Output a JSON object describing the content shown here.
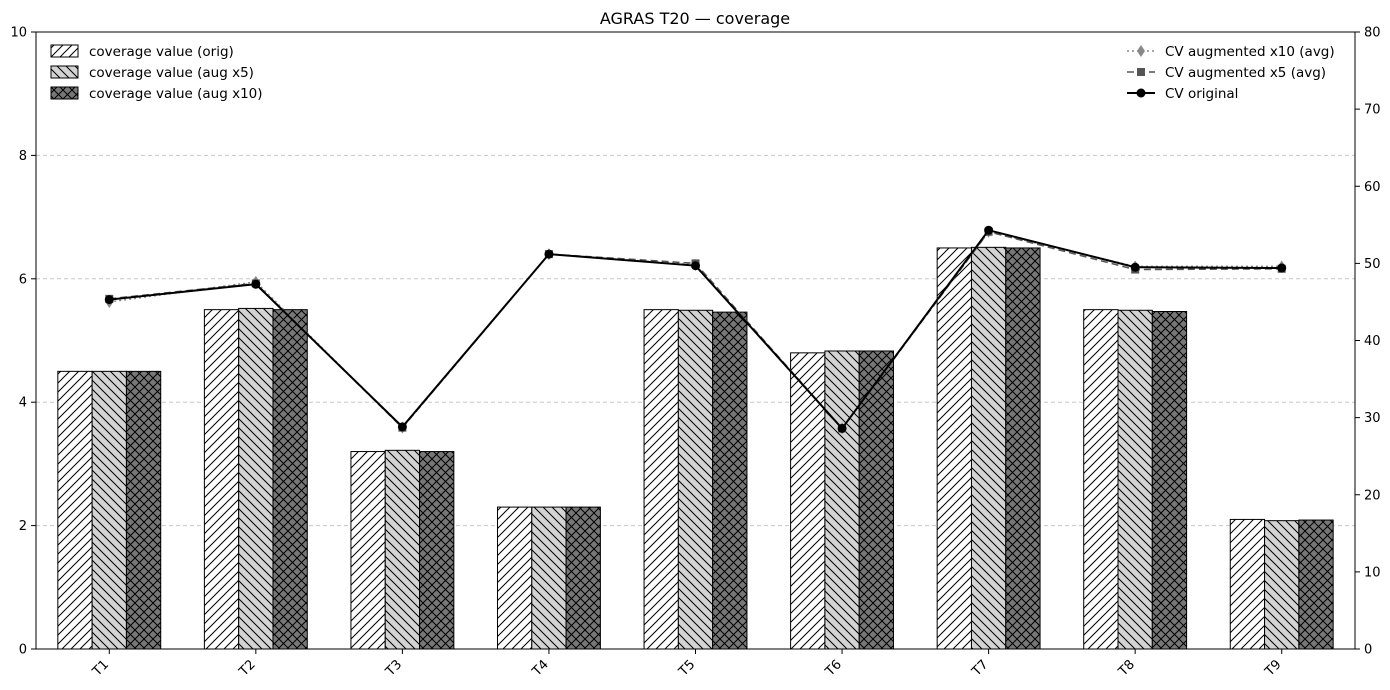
{
  "chart_data": {
    "type": "bar",
    "title": "AGRAS T20 — coverage",
    "xlabel": "",
    "ylabel": "",
    "y2label": "",
    "categories": [
      "T1",
      "T2",
      "T3",
      "T4",
      "T5",
      "T6",
      "T7",
      "T8",
      "T9"
    ],
    "ylim": [
      0,
      10
    ],
    "yticks": [
      0,
      2,
      4,
      6,
      8,
      10
    ],
    "y2lim": [
      0,
      80
    ],
    "y2ticks": [
      0,
      10,
      20,
      30,
      40,
      50,
      60,
      70,
      80
    ],
    "grid": "y-dashed",
    "series": [
      {
        "name": "coverage value (orig)",
        "kind": "bar",
        "fill": "#ffffff",
        "hatch": "forward-diagonal",
        "values": [
          4.5,
          5.5,
          3.2,
          2.3,
          5.5,
          4.8,
          6.5,
          5.5,
          2.1
        ]
      },
      {
        "name": "coverage value (aug x5)",
        "kind": "bar",
        "fill": "#d3d3d3",
        "hatch": "back-diagonal",
        "values": [
          4.5,
          5.52,
          3.22,
          2.3,
          5.49,
          4.83,
          6.51,
          5.49,
          2.08
        ]
      },
      {
        "name": "coverage value (aug x10)",
        "kind": "bar",
        "fill": "#777777",
        "hatch": "cross",
        "values": [
          4.5,
          5.5,
          3.2,
          2.3,
          5.46,
          4.83,
          6.5,
          5.47,
          2.09
        ]
      }
    ],
    "line_series": [
      {
        "name": "CV augmented x10 (avg)",
        "axis": "right",
        "color": "#888888",
        "linestyle": "dotted",
        "marker": "diamond",
        "values": [
          45.0,
          47.6,
          28.7,
          51.2,
          49.8,
          28.6,
          54.1,
          49.6,
          49.6
        ]
      },
      {
        "name": "CV augmented x5 (avg)",
        "axis": "right",
        "color": "#555555",
        "linestyle": "dashed",
        "marker": "square",
        "values": [
          45.4,
          47.4,
          28.7,
          51.2,
          50.0,
          28.6,
          54.1,
          49.2,
          49.3
        ]
      },
      {
        "name": "CV original",
        "axis": "right",
        "color": "#000000",
        "linestyle": "solid",
        "marker": "circle",
        "values": [
          45.3,
          47.3,
          28.8,
          51.2,
          49.7,
          28.6,
          54.3,
          49.5,
          49.4
        ]
      }
    ],
    "legend_left_placement": "upper-left",
    "legend_right_placement": "upper-right"
  }
}
